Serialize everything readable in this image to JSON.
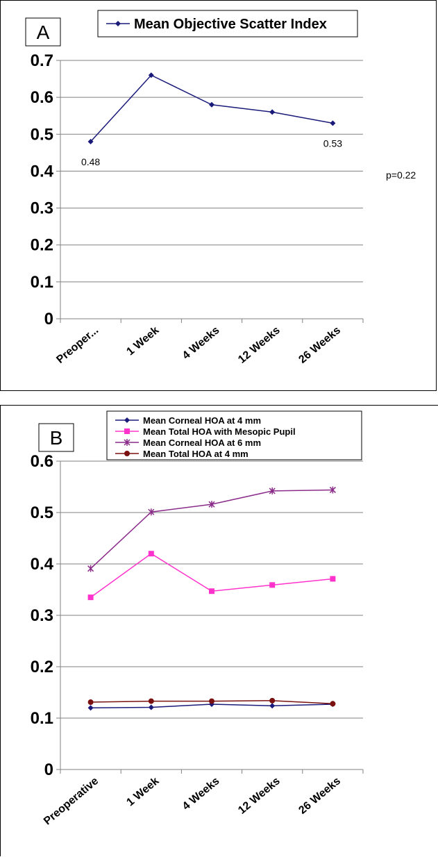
{
  "chart_data": [
    {
      "panel_label": "A",
      "type": "line",
      "categories": [
        "Preoper...",
        "1 Week",
        "4 Weeks",
        "12 Weeks",
        "26 Weeks"
      ],
      "series": [
        {
          "name": "Mean Objective Scatter Index",
          "values": [
            0.48,
            0.66,
            0.58,
            0.56,
            0.53
          ],
          "color": "#1a1a7a",
          "marker": "diamond"
        }
      ],
      "data_labels": [
        {
          "category_index": 0,
          "text": "0.48"
        },
        {
          "category_index": 4,
          "text": "0.53"
        }
      ],
      "annotation": "p=0.22",
      "ylim": [
        0,
        0.7
      ],
      "yticks": [
        "0",
        "0.1",
        "0.2",
        "0.3",
        "0.4",
        "0.5",
        "0.6",
        "0.7"
      ],
      "grid": true,
      "legend": "top"
    },
    {
      "panel_label": "B",
      "type": "line",
      "categories": [
        "Preoperative",
        "1 Week",
        "4 Weeks",
        "12 Weeks",
        "26 Weeks"
      ],
      "series": [
        {
          "name": "Mean Corneal HOA at 4 mm",
          "values": [
            0.12,
            0.121,
            0.127,
            0.124,
            0.127
          ],
          "color": "#1a1a7a",
          "marker": "diamond"
        },
        {
          "name": "Mean Total HOA with Mesopic Pupil",
          "values": [
            0.335,
            0.42,
            0.347,
            0.359,
            0.371
          ],
          "color": "#ff33cc",
          "marker": "square"
        },
        {
          "name": "Mean Corneal HOA at 6 mm",
          "values": [
            0.391,
            0.501,
            0.516,
            0.542,
            0.544
          ],
          "color": "#8a2b8a",
          "marker": "asterisk"
        },
        {
          "name": "Mean Total HOA at 4 mm",
          "values": [
            0.131,
            0.133,
            0.133,
            0.134,
            0.128
          ],
          "color": "#7a1010",
          "marker": "circle"
        }
      ],
      "ylim": [
        0,
        0.6
      ],
      "yticks": [
        "0",
        "0.1",
        "0.2",
        "0.3",
        "0.4",
        "0.5",
        "0.6"
      ],
      "grid": true,
      "legend": "top"
    }
  ]
}
